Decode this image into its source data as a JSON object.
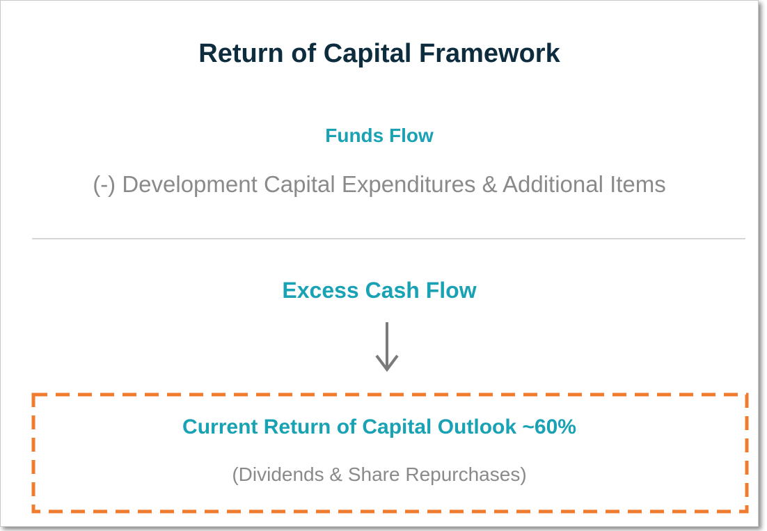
{
  "title": "Return of Capital Framework",
  "funds_flow": {
    "label": "Funds Flow",
    "deduction": "(-) Development Capital Expenditures & Additional Items"
  },
  "excess_cash_flow": {
    "label": "Excess Cash Flow"
  },
  "outlook": {
    "label": "Current Return of Capital Outlook ~60%",
    "detail": "(Dividends & Share Repurchases)"
  }
}
